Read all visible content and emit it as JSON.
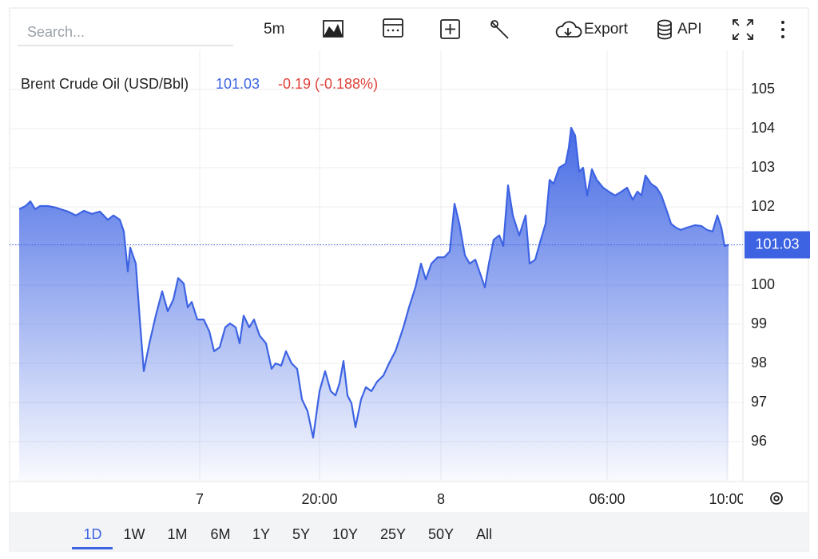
{
  "toolbar": {
    "search_placeholder": "Search...",
    "interval": "5m",
    "export": "Export",
    "api": "API"
  },
  "chart_data": {
    "type": "line",
    "title": "Brent Crude Oil (USD/Bbl)",
    "change_label": "-0.19 (-0.188%)",
    "x": [
      0,
      8,
      14,
      20,
      26,
      36,
      46,
      61,
      71,
      81,
      91,
      101,
      111,
      118,
      126,
      131,
      136,
      139,
      146,
      151,
      156,
      163,
      171,
      179,
      186,
      193,
      199,
      206,
      211,
      216,
      223,
      231,
      238,
      244,
      251,
      258,
      264,
      271,
      276,
      281,
      288,
      294,
      301,
      309,
      316,
      321,
      328,
      334,
      341,
      348,
      354,
      361,
      368,
      376,
      383,
      390,
      396,
      401,
      406,
      411,
      416,
      421,
      428,
      434,
      441,
      448,
      456,
      463,
      471,
      481,
      488,
      496,
      503,
      509,
      516,
      524,
      532,
      539,
      545,
      551,
      558,
      564,
      571,
      578,
      583,
      588,
      594,
      601,
      606,
      612,
      618,
      626,
      634,
      639,
      646,
      653,
      659,
      664,
      669,
      676,
      684,
      688,
      691,
      696,
      701,
      706,
      711,
      717,
      723,
      731,
      738,
      746,
      754,
      761,
      768,
      774,
      779,
      784,
      791,
      798,
      804,
      811,
      816,
      822,
      828,
      836,
      846,
      854,
      861,
      868,
      874,
      879,
      883,
      888
    ],
    "series": [
      {
        "name": "Brent Crude Oil (USD/Bbl)",
        "color": "#3d63e3",
        "values": [
          101.94,
          102.02,
          102.14,
          101.94,
          102.02,
          102.02,
          101.98,
          101.88,
          101.78,
          101.9,
          101.82,
          101.88,
          101.67,
          101.78,
          101.67,
          101.37,
          100.35,
          100.96,
          100.55,
          99.12,
          97.8,
          98.51,
          99.22,
          99.84,
          99.33,
          99.63,
          100.18,
          100.04,
          99.43,
          99.57,
          99.12,
          99.12,
          98.82,
          98.31,
          98.41,
          98.92,
          99.02,
          98.92,
          98.51,
          99.22,
          98.92,
          99.12,
          98.71,
          98.51,
          97.86,
          98.0,
          97.94,
          98.31,
          98.0,
          97.86,
          97.08,
          96.78,
          96.1,
          97.29,
          97.8,
          97.29,
          97.18,
          97.49,
          98.06,
          97.18,
          96.98,
          96.37,
          97.08,
          97.39,
          97.29,
          97.53,
          97.69,
          98.0,
          98.31,
          98.92,
          99.43,
          99.94,
          100.55,
          100.14,
          100.55,
          100.71,
          100.71,
          100.86,
          102.08,
          101.57,
          100.76,
          100.55,
          100.65,
          100.24,
          99.94,
          100.55,
          101.16,
          101.27,
          101.0,
          102.55,
          101.78,
          101.27,
          101.78,
          100.55,
          100.65,
          101.16,
          101.57,
          102.69,
          102.59,
          103.0,
          103.1,
          103.51,
          104.02,
          103.82,
          102.9,
          103.0,
          102.29,
          102.96,
          102.69,
          102.49,
          102.39,
          102.29,
          102.39,
          102.49,
          102.18,
          102.39,
          102.29,
          102.8,
          102.59,
          102.49,
          102.29,
          101.88,
          101.57,
          101.47,
          101.41,
          101.47,
          101.53,
          101.51,
          101.41,
          101.37,
          101.78,
          101.47,
          101.0,
          101.03
        ]
      }
    ],
    "xlim": [
      0,
      906
    ],
    "xticks": [
      {
        "value": 226,
        "label": "7"
      },
      {
        "value": 376,
        "label": "20:00"
      },
      {
        "value": 528,
        "label": "8"
      },
      {
        "value": 736,
        "label": "06:00"
      },
      {
        "value": 886,
        "label": "10:00"
      }
    ],
    "ylim": [
      95,
      106
    ],
    "yticks": [
      96,
      97,
      98,
      99,
      100,
      101,
      102,
      103,
      104,
      105
    ],
    "grid": true
  },
  "ranges": [
    "1D",
    "1W",
    "1M",
    "6M",
    "1Y",
    "5Y",
    "10Y",
    "25Y",
    "50Y",
    "All"
  ]
}
